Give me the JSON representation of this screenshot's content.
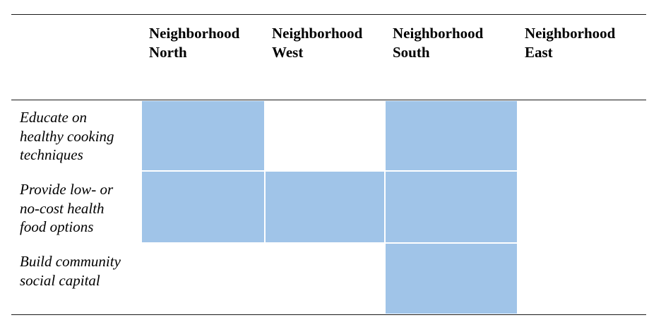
{
  "table": {
    "columns": [
      {
        "line1": "Neighborhood",
        "line2": "North"
      },
      {
        "line1": "Neighborhood",
        "line2": "West"
      },
      {
        "line1": "Neighborhood",
        "line2": "South"
      },
      {
        "line1": "Neighborhood",
        "line2": "East"
      }
    ],
    "rows": [
      {
        "lines": [
          "Educate on",
          "healthy cooking",
          "techniques"
        ],
        "cells": [
          true,
          false,
          true,
          false
        ]
      },
      {
        "lines": [
          "Provide low- or",
          "no-cost health",
          "food options"
        ],
        "cells": [
          true,
          true,
          true,
          false
        ]
      },
      {
        "lines": [
          "Build community",
          "social capital"
        ],
        "cells": [
          false,
          false,
          true,
          false
        ]
      }
    ],
    "highlight_color": "#a0c4e8"
  }
}
